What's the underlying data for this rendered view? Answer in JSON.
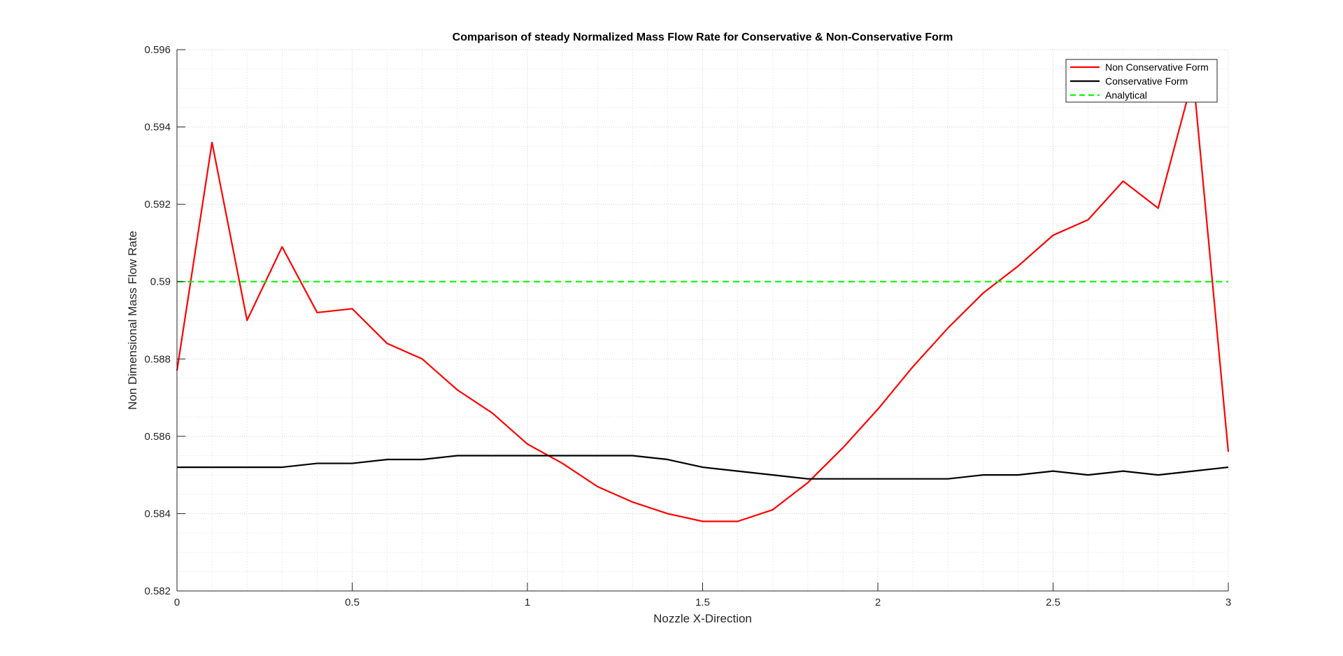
{
  "chart_data": {
    "type": "line",
    "title": "Comparison of steady Normalized Mass Flow Rate for Conservative & Non-Conservative Form",
    "xlabel": "Nozzle X-Direction",
    "ylabel": "Non Dimensional Mass Flow Rate",
    "xlim": [
      0,
      3
    ],
    "ylim": [
      0.582,
      0.596
    ],
    "xticks": [
      0,
      0.5,
      1,
      1.5,
      2,
      2.5,
      3
    ],
    "xtick_labels": [
      "0",
      "0.5",
      "1",
      "1.5",
      "2",
      "2.5",
      "3"
    ],
    "yticks": [
      0.582,
      0.584,
      0.586,
      0.588,
      0.59,
      0.592,
      0.594,
      0.596
    ],
    "ytick_labels": [
      "0.582",
      "0.584",
      "0.586",
      "0.588",
      "0.59",
      "0.592",
      "0.594",
      "0.596"
    ],
    "grid": true,
    "minor_grid": true,
    "legend_position": "top-right",
    "x": [
      0,
      0.1,
      0.2,
      0.3,
      0.4,
      0.5,
      0.6,
      0.7,
      0.8,
      0.9,
      1.0,
      1.1,
      1.2,
      1.3,
      1.4,
      1.5,
      1.6,
      1.7,
      1.8,
      1.9,
      2.0,
      2.1,
      2.2,
      2.3,
      2.4,
      2.5,
      2.6,
      2.7,
      2.8,
      2.9,
      3.0
    ],
    "series": [
      {
        "name": "Non Conservative Form",
        "color": "#ff0000",
        "style": "solid",
        "values": [
          0.5877,
          0.5936,
          0.589,
          0.5909,
          0.5892,
          0.5893,
          0.5884,
          0.588,
          0.5872,
          0.5866,
          0.5858,
          0.5853,
          0.5847,
          0.5843,
          0.584,
          0.5838,
          0.5838,
          0.5841,
          0.5848,
          0.5857,
          0.5867,
          0.5878,
          0.5888,
          0.5897,
          0.5904,
          0.5912,
          0.5916,
          0.5926,
          0.5919,
          0.5953,
          0.5856
        ]
      },
      {
        "name": "Conservative Form",
        "color": "#000000",
        "style": "solid",
        "values": [
          0.5852,
          0.5852,
          0.5852,
          0.5852,
          0.5853,
          0.5853,
          0.5854,
          0.5854,
          0.5855,
          0.5855,
          0.5855,
          0.5855,
          0.5855,
          0.5855,
          0.5854,
          0.5852,
          0.5851,
          0.585,
          0.5849,
          0.5849,
          0.5849,
          0.5849,
          0.5849,
          0.585,
          0.585,
          0.5851,
          0.585,
          0.5851,
          0.585,
          0.5851,
          0.5852
        ]
      },
      {
        "name": "Analytical",
        "color": "#00ff00",
        "style": "dashed",
        "values": [
          0.59,
          0.59,
          0.59,
          0.59,
          0.59,
          0.59,
          0.59,
          0.59,
          0.59,
          0.59,
          0.59,
          0.59,
          0.59,
          0.59,
          0.59,
          0.59,
          0.59,
          0.59,
          0.59,
          0.59,
          0.59,
          0.59,
          0.59,
          0.59,
          0.59,
          0.59,
          0.59,
          0.59,
          0.59,
          0.59,
          0.59
        ]
      }
    ]
  }
}
